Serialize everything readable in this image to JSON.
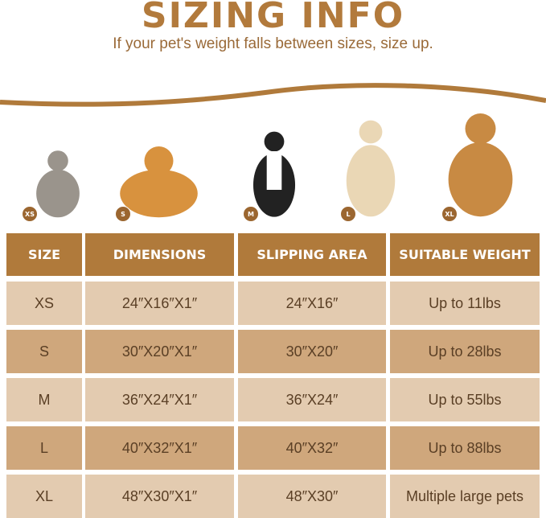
{
  "title": "SIZING INFO",
  "subtitle": "If your pet's weight falls between sizes, size up.",
  "colors": {
    "accent": "#b07a3b",
    "row_light": "#e3cbb0",
    "row_dark": "#cfa77c",
    "badge": "#9b6630"
  },
  "pets": [
    {
      "badge": "XS",
      "animal": "cat"
    },
    {
      "badge": "S",
      "animal": "corgi"
    },
    {
      "badge": "M",
      "animal": "border-collie"
    },
    {
      "badge": "L",
      "animal": "labrador"
    },
    {
      "badge": "XL",
      "animal": "golden-retriever"
    }
  ],
  "table": {
    "headers": [
      "SIZE",
      "DIMENSIONS",
      "SLIPPING AREA",
      "SUITABLE WEIGHT"
    ],
    "rows": [
      [
        "XS",
        "24″X16″X1″",
        "24″X16″",
        "Up to 11lbs"
      ],
      [
        "S",
        "30″X20″X1″",
        "30″X20″",
        "Up to 28lbs"
      ],
      [
        "M",
        "36″X24″X1″",
        "36″X24″",
        "Up to 55lbs"
      ],
      [
        "L",
        "40″X32″X1″",
        "40″X32″",
        "Up to 88lbs"
      ],
      [
        "XL",
        "48″X30″X1″",
        "48″X30″",
        "Multiple large pets"
      ]
    ]
  }
}
